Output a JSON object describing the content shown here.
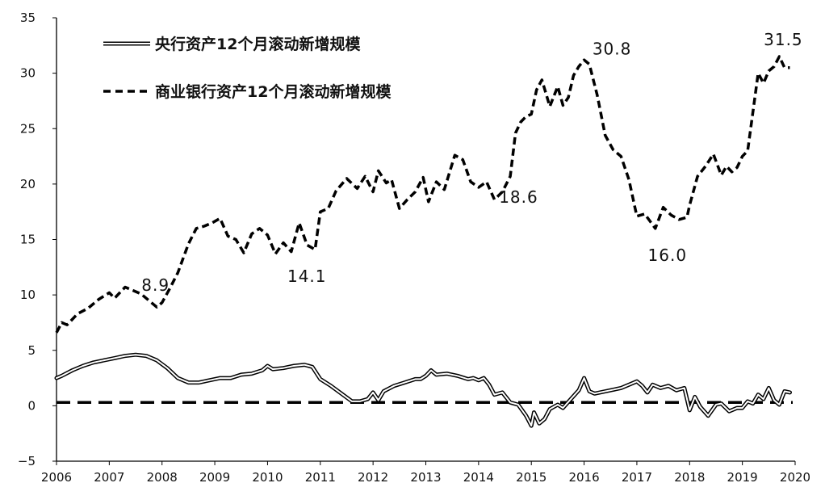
{
  "chart_data": {
    "type": "line",
    "title": "",
    "xlabel": "",
    "ylabel": "",
    "xlim": [
      2006,
      2020
    ],
    "ylim": [
      -5,
      35
    ],
    "x_ticks": [
      "2006",
      "2007",
      "2008",
      "2009",
      "2010",
      "2011",
      "2012",
      "2013",
      "2014",
      "2015",
      "2016",
      "2017",
      "2018",
      "2019",
      "2020"
    ],
    "y_ticks": [
      "35",
      "30",
      "25",
      "20",
      "15",
      "10",
      "5",
      "0",
      "−5"
    ],
    "grid": false,
    "legend_position": "top-left",
    "reference_line": {
      "y": 0.3,
      "style": "dashed"
    },
    "series": [
      {
        "name": "央行资产12个月滚动新增规模",
        "style": "double-line",
        "color": "#000000",
        "x": [
          2006.0,
          2006.1,
          2006.3,
          2006.5,
          2006.7,
          2006.9,
          2007.1,
          2007.3,
          2007.5,
          2007.7,
          2007.9,
          2008.1,
          2008.3,
          2008.5,
          2008.7,
          2008.9,
          2009.1,
          2009.3,
          2009.5,
          2009.7,
          2009.9,
          2010.0,
          2010.1,
          2010.3,
          2010.5,
          2010.7,
          2010.85,
          2011.0,
          2011.2,
          2011.4,
          2011.6,
          2011.75,
          2011.9,
          2012.0,
          2012.1,
          2012.2,
          2012.4,
          2012.6,
          2012.8,
          2012.9,
          2013.0,
          2013.1,
          2013.2,
          2013.4,
          2013.6,
          2013.8,
          2013.9,
          2014.0,
          2014.1,
          2014.2,
          2014.3,
          2014.45,
          2014.6,
          2014.75,
          2014.9,
          2015.0,
          2015.05,
          2015.15,
          2015.25,
          2015.35,
          2015.5,
          2015.6,
          2015.75,
          2015.9,
          2016.0,
          2016.1,
          2016.2,
          2016.3,
          2016.5,
          2016.7,
          2016.9,
          2017.0,
          2017.1,
          2017.2,
          2017.3,
          2017.45,
          2017.6,
          2017.75,
          2017.9,
          2018.0,
          2018.1,
          2018.2,
          2018.35,
          2018.5,
          2018.6,
          2018.75,
          2018.9,
          2019.0,
          2019.1,
          2019.2,
          2019.3,
          2019.4,
          2019.5,
          2019.6,
          2019.7,
          2019.8,
          2019.9
        ],
        "y": [
          2.5,
          2.7,
          3.2,
          3.6,
          3.9,
          4.1,
          4.3,
          4.5,
          4.6,
          4.5,
          4.1,
          3.4,
          2.5,
          2.1,
          2.1,
          2.3,
          2.5,
          2.5,
          2.8,
          2.9,
          3.2,
          3.6,
          3.3,
          3.4,
          3.6,
          3.7,
          3.5,
          2.4,
          1.8,
          1.1,
          0.4,
          0.4,
          0.6,
          1.2,
          0.5,
          1.3,
          1.8,
          2.1,
          2.4,
          2.4,
          2.7,
          3.2,
          2.8,
          2.9,
          2.7,
          2.4,
          2.5,
          2.3,
          2.5,
          1.9,
          1.0,
          1.2,
          0.3,
          0.1,
          -0.9,
          -1.8,
          -0.6,
          -1.6,
          -1.2,
          -0.3,
          0.1,
          -0.2,
          0.6,
          1.4,
          2.5,
          1.3,
          1.1,
          1.2,
          1.4,
          1.6,
          2.0,
          2.2,
          1.8,
          1.2,
          1.9,
          1.6,
          1.8,
          1.4,
          1.6,
          -0.4,
          0.8,
          -0.1,
          -0.9,
          0.1,
          0.2,
          -0.5,
          -0.2,
          -0.2,
          0.4,
          0.2,
          1.0,
          0.6,
          1.6,
          0.5,
          0.1,
          1.3,
          1.2
        ]
      },
      {
        "name": "商业银行资产12个月滚动新增规模",
        "style": "dashed",
        "color": "#000000",
        "x": [
          2006.0,
          2006.1,
          2006.2,
          2006.4,
          2006.6,
          2006.8,
          2007.0,
          2007.1,
          2007.3,
          2007.45,
          2007.6,
          2007.75,
          2007.9,
          2008.0,
          2008.15,
          2008.3,
          2008.5,
          2008.65,
          2008.8,
          2008.95,
          2009.1,
          2009.25,
          2009.4,
          2009.55,
          2009.7,
          2009.85,
          2010.0,
          2010.15,
          2010.3,
          2010.45,
          2010.6,
          2010.75,
          2010.9,
          2011.0,
          2011.15,
          2011.3,
          2011.5,
          2011.7,
          2011.85,
          2012.0,
          2012.1,
          2012.25,
          2012.35,
          2012.5,
          2012.65,
          2012.8,
          2012.95,
          2013.05,
          2013.2,
          2013.35,
          2013.55,
          2013.7,
          2013.85,
          2014.0,
          2014.15,
          2014.3,
          2014.45,
          2014.6,
          2014.7,
          2014.8,
          2014.9,
          2015.0,
          2015.1,
          2015.2,
          2015.35,
          2015.5,
          2015.6,
          2015.7,
          2015.8,
          2015.9,
          2016.0,
          2016.1,
          2016.25,
          2016.4,
          2016.55,
          2016.7,
          2016.85,
          2017.0,
          2017.15,
          2017.35,
          2017.5,
          2017.65,
          2017.8,
          2017.95,
          2018.0,
          2018.15,
          2018.3,
          2018.45,
          2018.6,
          2018.7,
          2018.8,
          2018.9,
          2019.0,
          2019.1,
          2019.2,
          2019.3,
          2019.4,
          2019.5,
          2019.6,
          2019.7,
          2019.8,
          2019.9
        ],
        "y": [
          6.6,
          7.5,
          7.3,
          8.3,
          8.8,
          9.6,
          10.2,
          9.7,
          10.7,
          10.4,
          10.1,
          9.5,
          8.9,
          9.3,
          10.6,
          12.0,
          14.6,
          16.0,
          16.2,
          16.5,
          16.9,
          15.3,
          15.0,
          13.8,
          15.5,
          16.0,
          15.4,
          13.7,
          14.7,
          13.9,
          16.5,
          14.5,
          14.1,
          17.5,
          17.8,
          19.4,
          20.5,
          19.6,
          20.7,
          19.3,
          21.2,
          20.1,
          20.4,
          17.8,
          18.6,
          19.3,
          20.6,
          18.4,
          20.2,
          19.5,
          22.6,
          22.2,
          20.2,
          19.7,
          20.2,
          18.6,
          19.3,
          20.7,
          24.6,
          25.6,
          26.1,
          26.3,
          28.5,
          29.4,
          27.0,
          28.8,
          27.1,
          27.8,
          29.8,
          30.6,
          31.2,
          30.8,
          28.0,
          24.4,
          23.1,
          22.5,
          20.4,
          17.1,
          17.3,
          16.0,
          17.9,
          17.2,
          16.8,
          17.0,
          18.1,
          20.7,
          21.6,
          22.7,
          20.8,
          21.6,
          21.1,
          21.5,
          22.5,
          23.0,
          26.5,
          30.0,
          29.1,
          30.2,
          30.6,
          31.5,
          30.5,
          30.5
        ]
      }
    ],
    "annotations": [
      {
        "text": "8.9",
        "x": 2008.0,
        "y": 8.9
      },
      {
        "text": "14.1",
        "x": 2010.9,
        "y": 14.1
      },
      {
        "text": "18.6",
        "x": 2014.3,
        "y": 18.6
      },
      {
        "text": "30.8",
        "x": 2016.1,
        "y": 30.8
      },
      {
        "text": "16.0",
        "x": 2017.35,
        "y": 16.0
      },
      {
        "text": "31.5",
        "x": 2019.7,
        "y": 31.5
      }
    ]
  }
}
